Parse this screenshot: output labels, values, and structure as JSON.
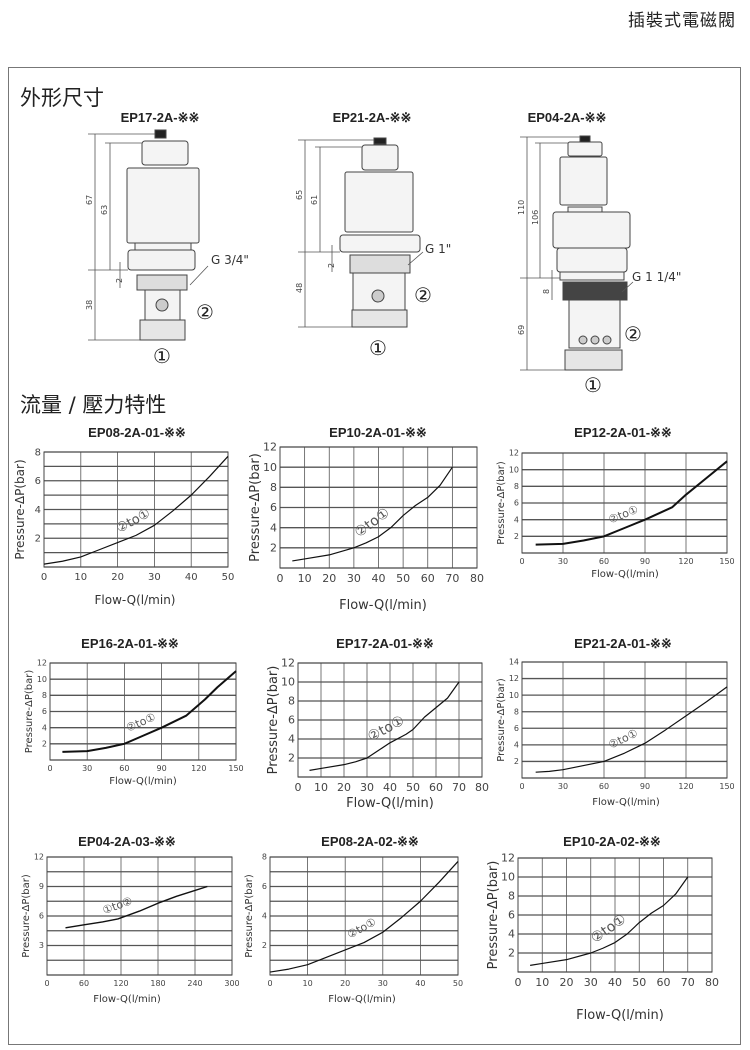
{
  "header": {
    "title": "插裝式電磁閥"
  },
  "sections": {
    "dimensions": "外形尺寸",
    "characteristics": "流量 / 壓力特性"
  },
  "valves": [
    {
      "model": "EP17-2A-※※",
      "dims": {
        "total": "67",
        "body": "63",
        "gap": "2",
        "insert": "38"
      },
      "thread": "G 3/4\"",
      "port1": "①",
      "port2": "②"
    },
    {
      "model": "EP21-2A-※※",
      "dims": {
        "total": "65",
        "body": "61",
        "gap": "2",
        "insert": "48"
      },
      "thread": "G 1\"",
      "port1": "①",
      "port2": "②"
    },
    {
      "model": "EP04-2A-※※",
      "dims": {
        "total": "110",
        "body": "106",
        "gap": "8",
        "insert": "69"
      },
      "thread": "G 1 1/4\"",
      "port1": "①",
      "port2": "②"
    }
  ],
  "chart_data": [
    {
      "type": "line",
      "title": "EP08-2A-01-※※",
      "xlabel": "Flow-Q(l/min)",
      "ylabel": "Pressure-ΔP(bar)",
      "xlim": [
        0,
        50
      ],
      "ylim": [
        0,
        8
      ],
      "xticks": [
        0,
        10,
        20,
        30,
        40,
        50
      ],
      "yticks": [
        2,
        4,
        6,
        8
      ],
      "grid": {
        "x": 10,
        "y": 1
      },
      "annotation": "②to①",
      "x": [
        0,
        5,
        10,
        15,
        20,
        25,
        30,
        35,
        40,
        45,
        50
      ],
      "y": [
        0.2,
        0.4,
        0.7,
        1.2,
        1.7,
        2.2,
        2.9,
        3.9,
        5,
        6.3,
        7.7
      ]
    },
    {
      "type": "line",
      "title": "EP10-2A-01-※※",
      "xlabel": "Flow-Q(l/min)",
      "ylabel": "Pressure-ΔP(bar)",
      "xlim": [
        0,
        80
      ],
      "ylim": [
        0,
        12
      ],
      "xticks": [
        0,
        10,
        20,
        30,
        40,
        50,
        60,
        70,
        80
      ],
      "yticks": [
        2,
        4,
        6,
        8,
        10,
        12
      ],
      "grid": {
        "x": 10,
        "y": 2
      },
      "annotation": "②to①",
      "x": [
        5,
        10,
        20,
        30,
        35,
        40,
        45,
        50,
        55,
        60,
        65,
        70
      ],
      "y": [
        0.7,
        0.9,
        1.3,
        2,
        2.5,
        3.1,
        4,
        5.2,
        6.2,
        7,
        8.2,
        10
      ]
    },
    {
      "type": "line",
      "title": "EP12-2A-01-※※",
      "xlabel": "Flow-Q(l/min)",
      "ylabel": "Pressure-ΔP(bar)",
      "xlim": [
        0,
        150
      ],
      "ylim": [
        0,
        12
      ],
      "xticks": [
        0,
        30,
        60,
        90,
        120,
        150
      ],
      "yticks": [
        2,
        4,
        6,
        8,
        10,
        12
      ],
      "grid": {
        "x": 30,
        "y": 2
      },
      "annotation": "②to①",
      "x": [
        10,
        30,
        45,
        60,
        75,
        90,
        110,
        120,
        135,
        150
      ],
      "y": [
        1,
        1.1,
        1.5,
        2,
        3,
        4,
        5.5,
        7,
        9,
        11
      ]
    },
    {
      "type": "line",
      "title": "EP16-2A-01-※※",
      "xlabel": "Flow-Q(l/min)",
      "ylabel": "Pressure-ΔP(bar)",
      "xlim": [
        0,
        150
      ],
      "ylim": [
        0,
        12
      ],
      "xticks": [
        0,
        30,
        60,
        90,
        120,
        150
      ],
      "yticks": [
        2,
        4,
        6,
        8,
        10,
        12
      ],
      "grid": {
        "x": 30,
        "y": 2
      },
      "annotation": "②to①",
      "x": [
        10,
        30,
        45,
        60,
        75,
        90,
        110,
        125,
        135,
        150
      ],
      "y": [
        1,
        1.1,
        1.5,
        2,
        3,
        4,
        5.5,
        7.5,
        9,
        11
      ]
    },
    {
      "type": "line",
      "title": "EP17-2A-01-※※",
      "xlabel": "Flow-Q(l/min)",
      "ylabel": "Pressure-ΔP(bar)",
      "xlim": [
        0,
        80
      ],
      "ylim": [
        0,
        12
      ],
      "xticks": [
        0,
        10,
        20,
        30,
        40,
        50,
        60,
        70,
        80
      ],
      "yticks": [
        2,
        4,
        6,
        8,
        10,
        12
      ],
      "grid": {
        "x": 10,
        "y": 2
      },
      "annotation": "②to①",
      "x": [
        5,
        10,
        20,
        25,
        30,
        35,
        40,
        47,
        50,
        55,
        60,
        65,
        70
      ],
      "y": [
        0.7,
        0.9,
        1.3,
        1.6,
        2,
        2.8,
        3.6,
        4.5,
        5,
        6.3,
        7.3,
        8.3,
        10
      ]
    },
    {
      "type": "line",
      "title": "EP21-2A-01-※※",
      "xlabel": "Flow-Q(l/min)",
      "ylabel": "Pressure-ΔP(bar)",
      "xlim": [
        0,
        150
      ],
      "ylim": [
        0,
        14
      ],
      "xticks": [
        0,
        30,
        60,
        90,
        120,
        150
      ],
      "yticks": [
        2,
        4,
        6,
        8,
        10,
        12,
        14
      ],
      "grid": {
        "x": 30,
        "y": 2
      },
      "annotation": "②to①",
      "x": [
        10,
        20,
        30,
        45,
        60,
        75,
        90,
        105,
        120,
        135,
        150
      ],
      "y": [
        0.7,
        0.8,
        1,
        1.5,
        2,
        3,
        4.2,
        5.8,
        7.5,
        9.2,
        11
      ]
    },
    {
      "type": "line",
      "title": "EP04-2A-03-※※",
      "xlabel": "Flow-Q(l/min)",
      "ylabel": "Pressure-ΔP(bar)",
      "xlim": [
        0,
        300
      ],
      "ylim": [
        0,
        12
      ],
      "xticks": [
        0,
        60,
        120,
        180,
        240,
        300
      ],
      "yticks": [
        3,
        6,
        9,
        12
      ],
      "grid": {
        "x": 60,
        "y": 1.5
      },
      "annotation": "①to②",
      "x": [
        30,
        60,
        90,
        115,
        150,
        180,
        210,
        260
      ],
      "y": [
        4.8,
        5.1,
        5.4,
        5.7,
        6.5,
        7.3,
        8,
        9
      ]
    },
    {
      "type": "line",
      "title": "EP08-2A-02-※※",
      "xlabel": "Flow-Q(l/min)",
      "ylabel": "Pressure-ΔP(bar)",
      "xlim": [
        0,
        50
      ],
      "ylim": [
        0,
        8
      ],
      "xticks": [
        0,
        10,
        20,
        30,
        40,
        50
      ],
      "yticks": [
        2,
        4,
        6,
        8
      ],
      "grid": {
        "x": 10,
        "y": 1
      },
      "annotation": "②to①",
      "x": [
        0,
        5,
        10,
        15,
        20,
        25,
        30,
        35,
        40,
        45,
        50
      ],
      "y": [
        0.2,
        0.4,
        0.7,
        1.2,
        1.7,
        2.2,
        2.9,
        3.9,
        5,
        6.3,
        7.7
      ]
    },
    {
      "type": "line",
      "title": "EP10-2A-02-※※",
      "xlabel": "Flow-Q(l/min)",
      "ylabel": "Pressure-ΔP(bar)",
      "xlim": [
        0,
        80
      ],
      "ylim": [
        0,
        12
      ],
      "xticks": [
        0,
        10,
        20,
        30,
        40,
        50,
        60,
        70,
        80
      ],
      "yticks": [
        2,
        4,
        6,
        8,
        10,
        12
      ],
      "grid": {
        "x": 10,
        "y": 2
      },
      "annotation": "②to①",
      "x": [
        5,
        10,
        20,
        30,
        35,
        40,
        45,
        50,
        55,
        60,
        65,
        70
      ],
      "y": [
        0.7,
        0.9,
        1.3,
        2,
        2.5,
        3.1,
        4,
        5.2,
        6.2,
        7,
        8.2,
        10
      ]
    }
  ]
}
